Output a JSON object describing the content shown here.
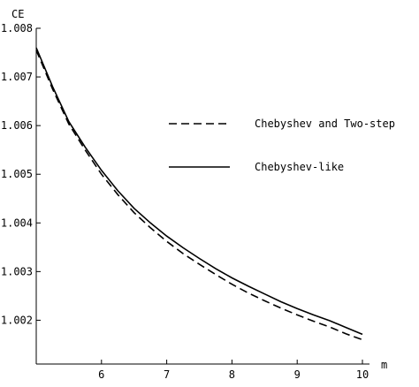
{
  "chart_data": {
    "type": "line",
    "title": "",
    "xlabel": "m",
    "ylabel": "CE",
    "xlim": [
      5,
      10
    ],
    "ylim": [
      1.0011,
      1.008
    ],
    "x_ticks": [
      "6",
      "7",
      "8",
      "9",
      "10"
    ],
    "y_ticks": [
      "1.002",
      "1.003",
      "1.004",
      "1.005",
      "1.006",
      "1.007",
      "1.008"
    ],
    "grid": false,
    "legend_position": "right",
    "x": [
      5,
      5.25,
      5.5,
      5.75,
      6,
      6.25,
      6.5,
      6.75,
      7,
      7.25,
      7.5,
      7.75,
      8,
      8.25,
      8.5,
      8.75,
      9,
      9.25,
      9.5,
      9.75,
      10
    ],
    "series": [
      {
        "name": "Chebyshev and Two-step",
        "style": "dashed",
        "values": [
          1.00755,
          1.00675,
          1.00603,
          1.0055,
          1.005,
          1.00458,
          1.00421,
          1.0039,
          1.00362,
          1.00337,
          1.00315,
          1.00294,
          1.00274,
          1.00256,
          1.0024,
          1.00225,
          1.00211,
          1.00198,
          1.00186,
          1.00172,
          1.0016
        ]
      },
      {
        "name": "Chebyshev-like",
        "style": "solid",
        "values": [
          1.0076,
          1.0068,
          1.00608,
          1.00556,
          1.00508,
          1.00466,
          1.0043,
          1.004,
          1.00373,
          1.00349,
          1.00327,
          1.00306,
          1.00287,
          1.0027,
          1.00254,
          1.00238,
          1.00224,
          1.00211,
          1.00199,
          1.00185,
          1.00171
        ]
      }
    ]
  }
}
